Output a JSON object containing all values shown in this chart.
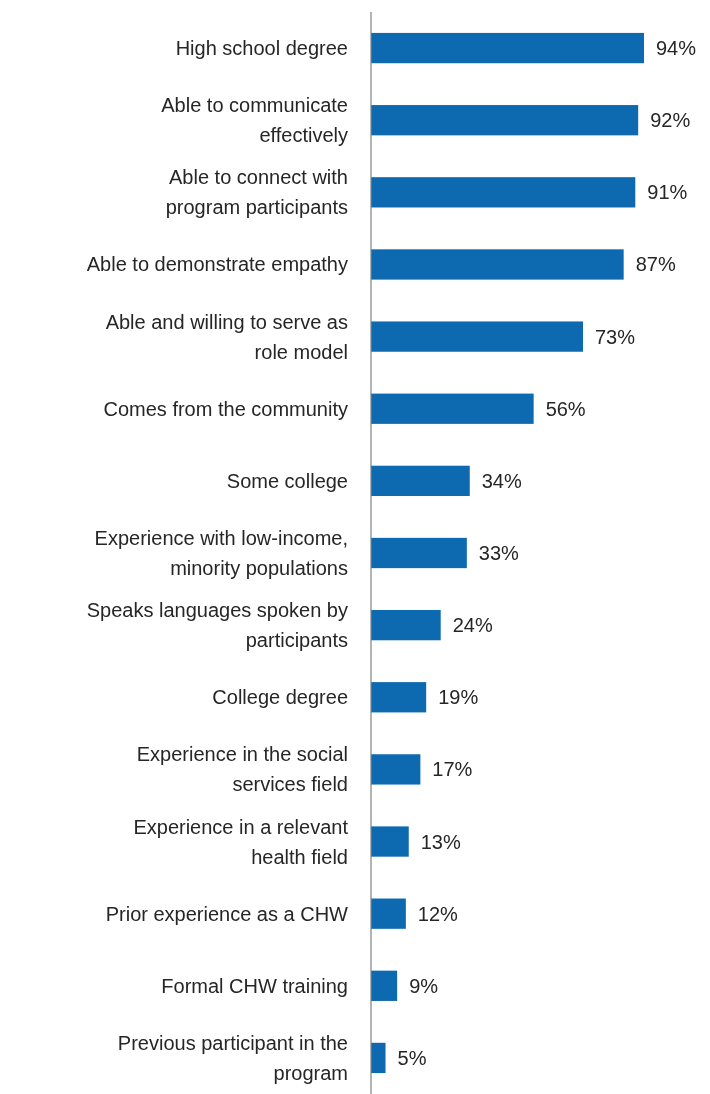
{
  "chart_data": {
    "type": "bar",
    "orientation": "horizontal",
    "categories": [
      "High school degree",
      "Able to communicate\neffectively",
      "Able to connect with\nprogram participants",
      "Able to demonstrate empathy",
      "Able and willing to serve as\nrole model",
      "Comes from the community",
      "Some college",
      "Experience with low-income,\nminority populations",
      "Speaks languages spoken by\nparticipants",
      "College degree",
      "Experience in the social\nservices field",
      "Experience in a relevant\nhealth field",
      "Prior experience as a CHW",
      "Formal CHW training",
      "Previous participant in the\nprogram"
    ],
    "values": [
      94,
      92,
      91,
      87,
      73,
      56,
      34,
      33,
      24,
      19,
      17,
      13,
      12,
      9,
      5
    ],
    "value_labels": [
      "94%",
      "92%",
      "91%",
      "87%",
      "73%",
      "56%",
      "34%",
      "33%",
      "24%",
      "19%",
      "17%",
      "13%",
      "12%",
      "9%",
      "5%"
    ],
    "color": "#0e6ab0"
  }
}
